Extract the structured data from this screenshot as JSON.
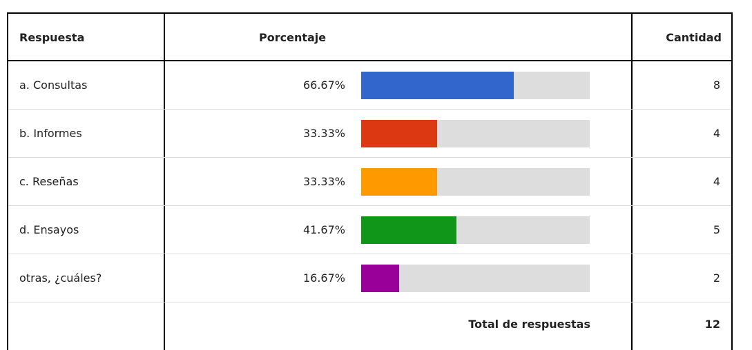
{
  "table": {
    "header": [
      "Respuesta",
      "Porcentaje",
      "Cantidad"
    ],
    "rows": [
      {
        "answer": "a. Consultas",
        "percent": "66.67%",
        "count": 8,
        "color": "#3366cc"
      },
      {
        "answer": "b. Informes",
        "percent": "33.33%",
        "count": 4,
        "color": "#dc3912"
      },
      {
        "answer": "c. Reseñas",
        "percent": "33.33%",
        "count": 4,
        "color": "#ff9900"
      },
      {
        "answer": "d. Ensayos",
        "percent": "41.67%",
        "count": 5,
        "color": "#109618"
      },
      {
        "answer": "otras, ¿cuáles?",
        "percent": "16.67%",
        "count": 2,
        "color": "#990099"
      }
    ],
    "total_label": "Total de respuestas",
    "total": 12
  }
}
